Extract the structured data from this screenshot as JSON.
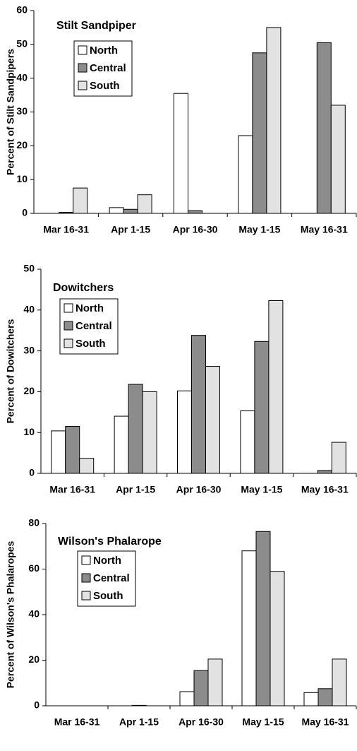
{
  "chart_data": [
    {
      "type": "bar",
      "title": "Stilt Sandpiper",
      "ylabel": "Percent of Stilt Sandpipers",
      "categories": [
        "Mar 16-31",
        "Apr 1-15",
        "Apr 16-30",
        "May 1-15",
        "May 16-31"
      ],
      "series": [
        {
          "name": "North",
          "color": "#ffffff",
          "values": [
            0,
            1.7,
            35.5,
            23,
            0
          ]
        },
        {
          "name": "Central",
          "color": "#8c8c8c",
          "values": [
            0.3,
            1.2,
            0.8,
            47.5,
            50.5
          ]
        },
        {
          "name": "South",
          "color": "#e2e2e2",
          "values": [
            7.5,
            5.5,
            0,
            55,
            32
          ]
        }
      ],
      "ylim": [
        0,
        60
      ],
      "yticks": [
        0,
        10,
        20,
        30,
        40,
        50,
        60
      ],
      "legend": "upper left"
    },
    {
      "type": "bar",
      "title": "Dowitchers",
      "ylabel": "Percent of Dowitchers",
      "categories": [
        "Mar 16-31",
        "Apr 1-15",
        "Apr 16-30",
        "May 1-15",
        "May 16-31"
      ],
      "series": [
        {
          "name": "North",
          "color": "#ffffff",
          "values": [
            10.4,
            14,
            20.2,
            15.3,
            0
          ]
        },
        {
          "name": "Central",
          "color": "#8c8c8c",
          "values": [
            11.5,
            21.8,
            33.8,
            32.3,
            0.7
          ]
        },
        {
          "name": "South",
          "color": "#e2e2e2",
          "values": [
            3.7,
            20,
            26.2,
            42.3,
            7.6
          ]
        }
      ],
      "ylim": [
        0,
        50
      ],
      "yticks": [
        0,
        10,
        20,
        30,
        40,
        50
      ],
      "legend": "upper left"
    },
    {
      "type": "bar",
      "title": "Wilson's Phalarope",
      "ylabel": "Percent of Wilson's Phalaropes",
      "categories": [
        "Mar 16-31",
        "Apr 1-15",
        "Apr 16-30",
        "May 1-15",
        "May 16-31"
      ],
      "series": [
        {
          "name": "North",
          "color": "#ffffff",
          "values": [
            0,
            0,
            6.2,
            68,
            5.8
          ]
        },
        {
          "name": "Central",
          "color": "#8c8c8c",
          "values": [
            0,
            0.2,
            15.5,
            76.5,
            7.5
          ]
        },
        {
          "name": "South",
          "color": "#e2e2e2",
          "values": [
            0,
            0,
            20.5,
            59,
            20.5
          ]
        }
      ],
      "ylim": [
        0,
        80
      ],
      "yticks": [
        0,
        20,
        40,
        60,
        80
      ],
      "legend": "upper left"
    }
  ]
}
